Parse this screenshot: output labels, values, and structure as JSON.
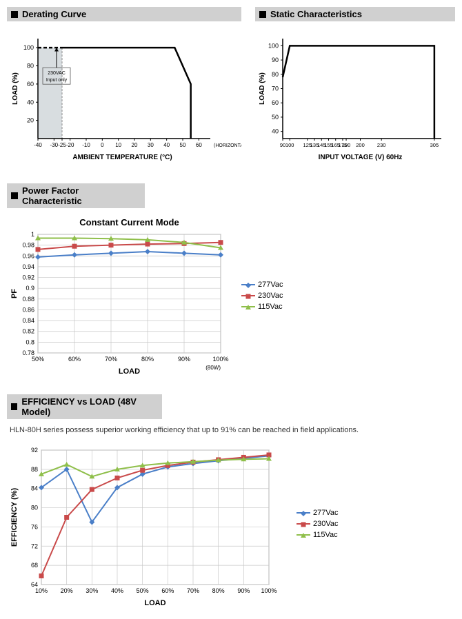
{
  "sections": {
    "derating": {
      "title": "Derating Curve"
    },
    "static": {
      "title": "Static Characteristics"
    },
    "pf": {
      "title": "Power Factor Characteristic"
    },
    "eff": {
      "title": "EFFICIENCY vs LOAD (48V Model)"
    }
  },
  "derating_chart": {
    "type": "line",
    "xlabel": "AMBIENT TEMPERATURE (°C)",
    "ylabel": "LOAD (%)",
    "xlim": [
      -40,
      65
    ],
    "ylim": [
      0,
      110
    ],
    "xticks": [
      -40,
      -30,
      -25,
      -20,
      -10,
      0,
      10,
      20,
      30,
      40,
      50,
      60
    ],
    "yticks": [
      20,
      40,
      60,
      80,
      100
    ],
    "note_text": "230VAC\nInput only",
    "horiz_label": "(HORIZONTAL)",
    "shade_x": [
      -40,
      -25
    ],
    "main_line": [
      [
        -40,
        100
      ],
      [
        -25,
        100
      ],
      [
        45,
        100
      ],
      [
        55,
        60
      ],
      [
        55,
        0
      ]
    ],
    "dash_line": [
      [
        -40,
        100
      ],
      [
        -25,
        100
      ]
    ],
    "colors": {
      "line": "#000000",
      "shade": "#d8dde0",
      "grid": "#c8c8c8"
    }
  },
  "static_chart": {
    "type": "line",
    "xlabel": "INPUT VOLTAGE (V) 60Hz",
    "ylabel": "LOAD (%)",
    "xlim": [
      90,
      310
    ],
    "ylim": [
      35,
      105
    ],
    "xticks": [
      90,
      100,
      125,
      135,
      145,
      155,
      165,
      175,
      180,
      200,
      230,
      305
    ],
    "yticks": [
      40,
      50,
      60,
      70,
      80,
      90,
      100
    ],
    "main_line": [
      [
        90,
        78
      ],
      [
        100,
        100
      ],
      [
        305,
        100
      ],
      [
        305,
        35
      ]
    ],
    "colors": {
      "line": "#000000",
      "grid": "#c8c8c8"
    }
  },
  "pf_chart": {
    "type": "line",
    "title": "Constant Current Mode",
    "xlabel": "LOAD",
    "ylabel": "PF",
    "xnote": "(80W)",
    "xlim": [
      50,
      100
    ],
    "ylim": [
      0.78,
      1.0
    ],
    "xticks": [
      "50%",
      "60%",
      "70%",
      "80%",
      "90%",
      "100%"
    ],
    "xtick_vals": [
      50,
      60,
      70,
      80,
      90,
      100
    ],
    "yticks": [
      0.78,
      0.8,
      0.82,
      0.84,
      0.86,
      0.88,
      0.9,
      0.92,
      0.94,
      0.96,
      0.98,
      1.0
    ],
    "series": [
      {
        "name": "277Vac",
        "color": "#4a7fc8",
        "marker": "diamond",
        "x": [
          50,
          60,
          70,
          80,
          90,
          100
        ],
        "y": [
          0.958,
          0.962,
          0.965,
          0.968,
          0.965,
          0.962
        ]
      },
      {
        "name": "230Vac",
        "color": "#c94a4a",
        "marker": "square",
        "x": [
          50,
          60,
          70,
          80,
          90,
          100
        ],
        "y": [
          0.972,
          0.978,
          0.98,
          0.982,
          0.983,
          0.985
        ]
      },
      {
        "name": "115Vac",
        "color": "#8fbf4a",
        "marker": "triangle",
        "x": [
          50,
          60,
          70,
          80,
          90,
          100
        ],
        "y": [
          0.993,
          0.993,
          0.992,
          0.99,
          0.985,
          0.975
        ]
      }
    ],
    "grid_color": "#c8c8c8",
    "bg": "#ffffff"
  },
  "eff_chart": {
    "type": "line",
    "subtitle": "HLN-80H series possess superior working efficiency that up to 91% can be reached in field applications.",
    "xlabel": "LOAD",
    "ylabel": "EFFICIENCY (%)",
    "xlim": [
      10,
      100
    ],
    "ylim": [
      64,
      92
    ],
    "xticks": [
      "10%",
      "20%",
      "30%",
      "40%",
      "50%",
      "60%",
      "70%",
      "80%",
      "90%",
      "100%"
    ],
    "xtick_vals": [
      10,
      20,
      30,
      40,
      50,
      60,
      70,
      80,
      90,
      100
    ],
    "yticks": [
      64,
      68,
      72,
      76,
      80,
      84,
      88,
      92
    ],
    "series": [
      {
        "name": "277Vac",
        "color": "#4a7fc8",
        "marker": "diamond",
        "x": [
          10,
          20,
          30,
          40,
          50,
          60,
          70,
          80,
          90,
          100
        ],
        "y": [
          84.2,
          88.0,
          77.0,
          84.2,
          87.0,
          88.5,
          89.2,
          89.8,
          90.3,
          90.8
        ]
      },
      {
        "name": "230Vac",
        "color": "#c94a4a",
        "marker": "square",
        "x": [
          10,
          20,
          30,
          40,
          50,
          60,
          70,
          80,
          90,
          100
        ],
        "y": [
          65.8,
          78.0,
          83.8,
          86.2,
          87.8,
          88.8,
          89.5,
          90.0,
          90.5,
          91.0
        ]
      },
      {
        "name": "115Vac",
        "color": "#8fbf4a",
        "marker": "triangle",
        "x": [
          10,
          20,
          30,
          40,
          50,
          60,
          70,
          80,
          90,
          100
        ],
        "y": [
          87.0,
          89.0,
          86.5,
          88.0,
          88.8,
          89.3,
          89.6,
          89.9,
          90.1,
          90.2
        ]
      }
    ],
    "grid_color": "#c8c8c8",
    "bg": "#ffffff"
  },
  "legend_labels": {
    "s277": "277Vac",
    "s230": "230Vac",
    "s115": "115Vac"
  }
}
